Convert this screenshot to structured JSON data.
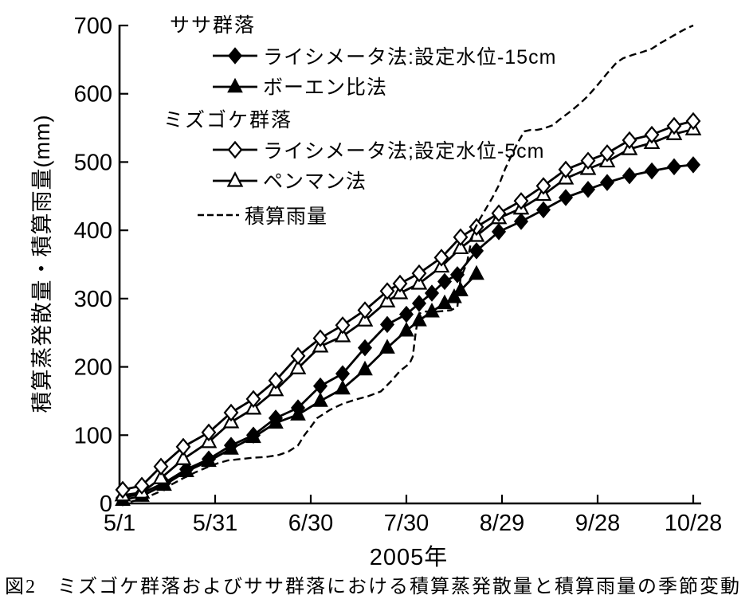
{
  "figure": {
    "caption": "図2　ミズゴケ群落およびササ群落における積算蒸発散量と積算雨量の季節変動"
  },
  "colors": {
    "ink": "#000000",
    "background": "#ffffff"
  },
  "legend": {
    "groups": [
      {
        "title": "ササ群落",
        "items": [
          {
            "label": "ライシメータ法:設定水位-15cm",
            "marker": "diamond-filled"
          },
          {
            "label": "ボーエン比法",
            "marker": "triangle-filled"
          }
        ]
      },
      {
        "title": "ミズゴケ群落",
        "items": [
          {
            "label": "ライシメータ法;設定水位-5cm",
            "marker": "diamond-open"
          },
          {
            "label": "ペンマン法",
            "marker": "triangle-open"
          }
        ]
      }
    ],
    "rain": {
      "label": "積算雨量",
      "marker": "dashed-line"
    }
  },
  "chart_data": {
    "type": "line",
    "title": "",
    "xlabel": "2005年",
    "ylabel": "積算蒸発散量・積算雨量(mm)",
    "x_unit": "days since 5/1/2005",
    "xlim_days": [
      0,
      180
    ],
    "ylim": [
      0,
      700
    ],
    "grid": false,
    "legend_position": "top-left-inside",
    "x_ticks": [
      {
        "day": 0,
        "label": "5/1"
      },
      {
        "day": 30,
        "label": "5/31"
      },
      {
        "day": 60,
        "label": "6/30"
      },
      {
        "day": 90,
        "label": "7/30"
      },
      {
        "day": 120,
        "label": "8/29"
      },
      {
        "day": 150,
        "label": "9/28"
      },
      {
        "day": 180,
        "label": "10/28"
      }
    ],
    "y_ticks": [
      0,
      100,
      200,
      300,
      400,
      500,
      600,
      700
    ],
    "series": [
      {
        "key": "bowen-ratio",
        "name": "ササ群落 ボーエン比法",
        "marker": "triangle-filled",
        "line": "solid",
        "points": [
          [
            1,
            5
          ],
          [
            7,
            11
          ],
          [
            14,
            27
          ],
          [
            21,
            47
          ],
          [
            28,
            62
          ],
          [
            35,
            80
          ],
          [
            42,
            97
          ],
          [
            49,
            118
          ],
          [
            56,
            130
          ],
          [
            63,
            150
          ],
          [
            70,
            168
          ],
          [
            77,
            196
          ],
          [
            84,
            228
          ],
          [
            90,
            253
          ],
          [
            94,
            268
          ],
          [
            98,
            281
          ],
          [
            102,
            293
          ],
          [
            105,
            302
          ],
          [
            107,
            312
          ],
          [
            112,
            336
          ]
        ]
      },
      {
        "key": "sasa-lysimeter",
        "name": "ササ群落 ライシメータ法:設定水位-15cm",
        "marker": "diamond-filled",
        "line": "solid",
        "points": [
          [
            1,
            8
          ],
          [
            7,
            15
          ],
          [
            14,
            30
          ],
          [
            21,
            50
          ],
          [
            28,
            65
          ],
          [
            35,
            85
          ],
          [
            42,
            100
          ],
          [
            49,
            125
          ],
          [
            56,
            140
          ],
          [
            63,
            172
          ],
          [
            70,
            190
          ],
          [
            77,
            228
          ],
          [
            84,
            262
          ],
          [
            90,
            277
          ],
          [
            94,
            293
          ],
          [
            98,
            308
          ],
          [
            102,
            325
          ],
          [
            106,
            335
          ],
          [
            112,
            370
          ],
          [
            119,
            398
          ],
          [
            126,
            413
          ],
          [
            133,
            430
          ],
          [
            140,
            448
          ],
          [
            147,
            460
          ],
          [
            153,
            470
          ],
          [
            160,
            480
          ],
          [
            167,
            487
          ],
          [
            174,
            493
          ],
          [
            180,
            496
          ]
        ]
      },
      {
        "key": "penman",
        "name": "ミズゴケ群落 ペンマン法",
        "marker": "triangle-open",
        "line": "solid",
        "points": [
          [
            1,
            12
          ],
          [
            7,
            16
          ],
          [
            13,
            37
          ],
          [
            20,
            65
          ],
          [
            28,
            90
          ],
          [
            35,
            119
          ],
          [
            42,
            139
          ],
          [
            49,
            166
          ],
          [
            56,
            198
          ],
          [
            63,
            230
          ],
          [
            70,
            245
          ],
          [
            77,
            268
          ],
          [
            84,
            296
          ],
          [
            88,
            308
          ],
          [
            94,
            322
          ],
          [
            101,
            347
          ],
          [
            107,
            374
          ],
          [
            112,
            392
          ],
          [
            119,
            418
          ],
          [
            126,
            432
          ],
          [
            133,
            452
          ],
          [
            140,
            476
          ],
          [
            147,
            490
          ],
          [
            153,
            501
          ],
          [
            160,
            519
          ],
          [
            167,
            528
          ],
          [
            174,
            541
          ],
          [
            180,
            548
          ]
        ]
      },
      {
        "key": "mizugoke-lysimeter",
        "name": "ミズゴケ群落 ライシメータ法;設定水位-5cm",
        "marker": "diamond-open",
        "line": "solid",
        "points": [
          [
            1,
            20
          ],
          [
            7,
            26
          ],
          [
            13,
            54
          ],
          [
            20,
            83
          ],
          [
            28,
            104
          ],
          [
            35,
            133
          ],
          [
            42,
            153
          ],
          [
            49,
            180
          ],
          [
            56,
            216
          ],
          [
            63,
            242
          ],
          [
            70,
            261
          ],
          [
            77,
            283
          ],
          [
            84,
            311
          ],
          [
            88,
            322
          ],
          [
            94,
            337
          ],
          [
            101,
            360
          ],
          [
            107,
            390
          ],
          [
            112,
            405
          ],
          [
            119,
            425
          ],
          [
            126,
            443
          ],
          [
            133,
            465
          ],
          [
            140,
            489
          ],
          [
            147,
            502
          ],
          [
            153,
            513
          ],
          [
            160,
            532
          ],
          [
            167,
            540
          ],
          [
            174,
            553
          ],
          [
            180,
            560
          ]
        ]
      },
      {
        "key": "rainfall",
        "name": "積算雨量",
        "marker": "none",
        "line": "dashed",
        "points": [
          [
            0,
            0
          ],
          [
            4,
            3
          ],
          [
            8,
            8
          ],
          [
            12,
            16
          ],
          [
            16,
            27
          ],
          [
            20,
            37
          ],
          [
            24,
            46
          ],
          [
            28,
            54
          ],
          [
            31,
            59
          ],
          [
            34,
            63
          ],
          [
            38,
            65
          ],
          [
            42,
            67
          ],
          [
            46,
            68
          ],
          [
            50,
            71
          ],
          [
            53,
            76
          ],
          [
            56,
            85
          ],
          [
            58,
            100
          ],
          [
            60,
            112
          ],
          [
            62,
            125
          ],
          [
            66,
            137
          ],
          [
            70,
            146
          ],
          [
            74,
            152
          ],
          [
            78,
            157
          ],
          [
            82,
            164
          ],
          [
            85,
            178
          ],
          [
            88,
            194
          ],
          [
            91,
            205
          ],
          [
            92,
            215
          ],
          [
            93,
            253
          ],
          [
            94,
            278
          ],
          [
            96,
            281
          ],
          [
            100,
            281
          ],
          [
            104,
            283
          ],
          [
            106,
            288
          ],
          [
            107,
            330
          ],
          [
            109,
            352
          ],
          [
            110,
            376
          ],
          [
            111,
            398
          ],
          [
            113,
            416
          ],
          [
            115,
            432
          ],
          [
            117,
            448
          ],
          [
            119,
            466
          ],
          [
            121,
            490
          ],
          [
            123,
            510
          ],
          [
            125,
            529
          ],
          [
            127,
            545
          ],
          [
            129,
            547
          ],
          [
            131,
            547
          ],
          [
            133,
            549
          ],
          [
            136,
            554
          ],
          [
            138,
            562
          ],
          [
            140,
            569
          ],
          [
            142,
            576
          ],
          [
            145,
            588
          ],
          [
            147,
            597
          ],
          [
            150,
            613
          ],
          [
            153,
            630
          ],
          [
            156,
            646
          ],
          [
            158,
            652
          ],
          [
            161,
            657
          ],
          [
            164,
            661
          ],
          [
            167,
            666
          ],
          [
            170,
            675
          ],
          [
            173,
            683
          ],
          [
            176,
            691
          ],
          [
            178,
            696
          ],
          [
            180,
            700
          ]
        ]
      }
    ]
  }
}
